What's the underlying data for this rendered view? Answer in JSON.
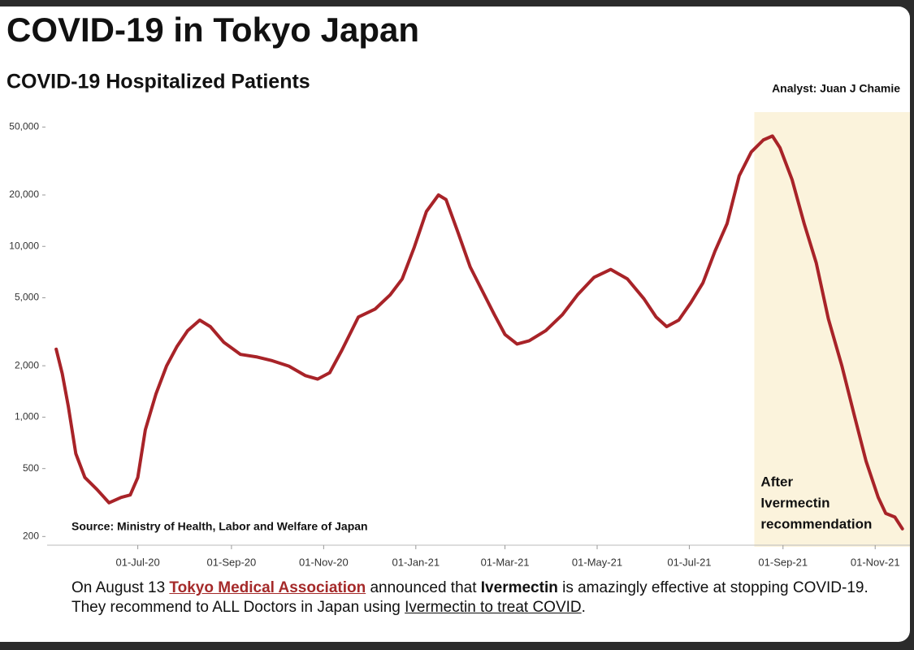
{
  "chart_data": {
    "type": "line",
    "title": "COVID-19 in Tokyo Japan",
    "subtitle": "COVID-19 Hospitalized Patients",
    "credit": "Analyst: Juan J Chamie",
    "source": "Source: Ministry of Health, Labor and Welfare of Japan",
    "annotation": [
      "After",
      "Ivermectin",
      "recommendation"
    ],
    "shaded_region": [
      "2021-08-13",
      "2021-11-24"
    ],
    "shade_color": "#fbf3dc",
    "log_scale": true,
    "grid": false,
    "x": [
      "2020-05-08",
      "2020-05-12",
      "2020-05-16",
      "2020-05-21",
      "2020-05-27",
      "2020-06-04",
      "2020-06-12",
      "2020-06-20",
      "2020-06-26",
      "2020-07-01",
      "2020-07-06",
      "2020-07-13",
      "2020-07-20",
      "2020-07-27",
      "2020-08-03",
      "2020-08-11",
      "2020-08-18",
      "2020-08-27",
      "2020-09-07",
      "2020-09-18",
      "2020-09-28",
      "2020-10-09",
      "2020-10-20",
      "2020-10-28",
      "2020-11-05",
      "2020-11-13",
      "2020-11-24",
      "2020-12-05",
      "2020-12-15",
      "2020-12-23",
      "2020-12-31",
      "2021-01-08",
      "2021-01-16",
      "2021-01-21",
      "2021-01-29",
      "2021-02-06",
      "2021-02-14",
      "2021-02-22",
      "2021-03-01",
      "2021-03-09",
      "2021-03-17",
      "2021-03-28",
      "2021-04-08",
      "2021-04-18",
      "2021-04-29",
      "2021-05-10",
      "2021-05-21",
      "2021-06-01",
      "2021-06-09",
      "2021-06-16",
      "2021-06-24",
      "2021-07-02",
      "2021-07-10",
      "2021-07-18",
      "2021-07-26",
      "2021-08-03",
      "2021-08-11",
      "2021-08-19",
      "2021-08-25",
      "2021-08-30",
      "2021-09-07",
      "2021-09-15",
      "2021-09-23",
      "2021-10-01",
      "2021-10-10",
      "2021-10-18",
      "2021-10-26",
      "2021-11-03",
      "2021-11-08",
      "2021-11-14",
      "2021-11-19"
    ],
    "series": [
      {
        "name": "Hospitalized Patients",
        "color": "#a82328",
        "values": [
          2500,
          1800,
          1160,
          611,
          443,
          377,
          315,
          339,
          350,
          443,
          844,
          1365,
          1990,
          2600,
          3210,
          3700,
          3390,
          2740,
          2330,
          2250,
          2140,
          1990,
          1750,
          1670,
          1820,
          2460,
          3860,
          4290,
          5200,
          6450,
          9900,
          16000,
          20000,
          18800,
          12000,
          7570,
          5490,
          3980,
          3050,
          2680,
          2800,
          3210,
          3980,
          5200,
          6590,
          7330,
          6450,
          4930,
          3860,
          3390,
          3700,
          4680,
          6110,
          9380,
          13600,
          25900,
          35700,
          42000,
          44300,
          37800,
          24600,
          13600,
          8000,
          3770,
          1990,
          1040,
          551,
          339,
          273,
          260,
          222
        ]
      }
    ],
    "xlim": [
      "2020-05-02",
      "2021-11-24"
    ],
    "xticks": [
      {
        "value": "2020-07-01",
        "label": "01-Jul-20"
      },
      {
        "value": "2020-09-01",
        "label": "01-Sep-20"
      },
      {
        "value": "2020-11-01",
        "label": "01-Nov-20"
      },
      {
        "value": "2021-01-01",
        "label": "01-Jan-21"
      },
      {
        "value": "2021-03-01",
        "label": "01-Mar-21"
      },
      {
        "value": "2021-05-01",
        "label": "01-May-21"
      },
      {
        "value": "2021-07-01",
        "label": "01-Jul-21"
      },
      {
        "value": "2021-09-01",
        "label": "01-Sep-21"
      },
      {
        "value": "2021-11-01",
        "label": "01-Nov-21"
      }
    ],
    "ylim": [
      190,
      56000
    ],
    "yticks": [
      {
        "value": 50000,
        "label": "50,000"
      },
      {
        "value": 20000,
        "label": "20,000"
      },
      {
        "value": 10000,
        "label": "10,000"
      },
      {
        "value": 5000,
        "label": "5,000"
      },
      {
        "value": 2000,
        "label": "2,000"
      },
      {
        "value": 1000,
        "label": "1,000"
      },
      500,
      200
    ]
  },
  "footer": {
    "line1": [
      "On August 13 ",
      "Tokyo Medical Association",
      " announced that ",
      "Ivermectin",
      " is amazingly effective at stopping COVID-19."
    ],
    "line2": [
      "They recommend to ALL Doctors in Japan using ",
      "Ivermectin to treat COVID",
      "."
    ]
  }
}
